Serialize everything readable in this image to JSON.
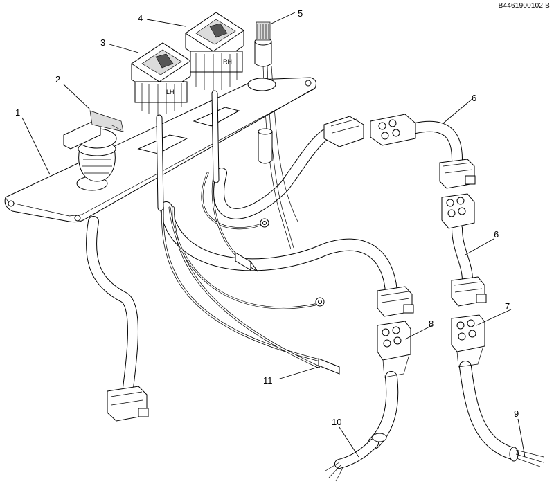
{
  "drawing_id": "B4461900102.B",
  "callouts": [
    {
      "number": "1",
      "part": "mounting-plate"
    },
    {
      "number": "2",
      "part": "rotary-key-switch"
    },
    {
      "number": "3",
      "part": "joystick-lh"
    },
    {
      "number": "4",
      "part": "joystick-rh"
    },
    {
      "number": "5",
      "part": "push-button-switch"
    },
    {
      "number": "6",
      "part": "harness-connector-pair"
    },
    {
      "number": "6",
      "part": "harness-connector-pair"
    },
    {
      "number": "7",
      "part": "connector-7"
    },
    {
      "number": "8",
      "part": "connector-8"
    },
    {
      "number": "9",
      "part": "harness-end-9"
    },
    {
      "number": "10",
      "part": "harness-end-10"
    },
    {
      "number": "11",
      "part": "spade-terminal-11"
    }
  ],
  "joystick_labels": {
    "lh": "LH",
    "rh": "RH"
  }
}
